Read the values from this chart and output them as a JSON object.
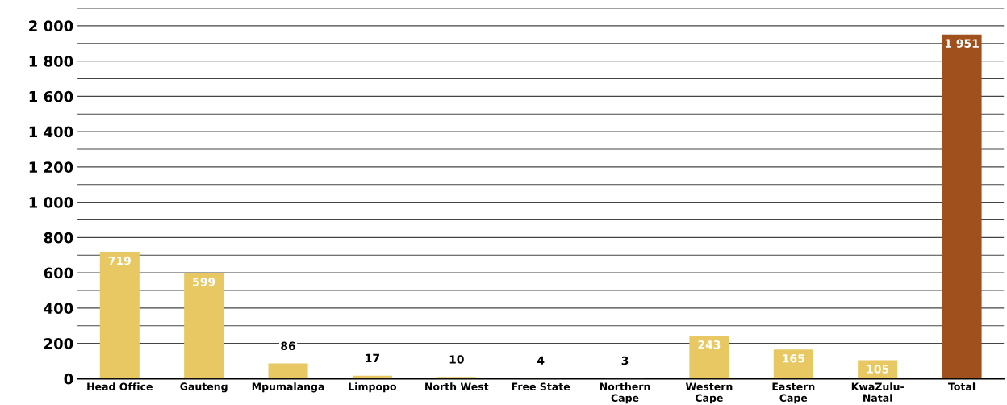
{
  "chart_data": {
    "type": "bar",
    "categories": [
      "Head Office",
      "Gauteng",
      "Mpumalanga",
      "Limpopo",
      "North West",
      "Free State",
      "Northern\nCape",
      "Western\nCape",
      "Eastern\nCape",
      "KwaZulu-\nNatal",
      "Total"
    ],
    "values": [
      719,
      599,
      86,
      17,
      10,
      4,
      3,
      243,
      165,
      105,
      1951
    ],
    "colors": [
      "#e8c862",
      "#e8c862",
      "#e8c862",
      "#e8c862",
      "#e8c862",
      "#e8c862",
      "#e8c862",
      "#e8c862",
      "#e8c862",
      "#e8c862",
      "#a0501c"
    ],
    "value_labels": [
      "719",
      "599",
      "86",
      "17",
      "10",
      "4",
      "3",
      "243",
      "165",
      "105",
      "1 951"
    ],
    "ylim": [
      0,
      2100
    ],
    "yticks": [
      {
        "value": 0,
        "label": "0"
      },
      {
        "value": 100,
        "label": null
      },
      {
        "value": 200,
        "label": "200"
      },
      {
        "value": 300,
        "label": null
      },
      {
        "value": 400,
        "label": "400"
      },
      {
        "value": 500,
        "label": null
      },
      {
        "value": 600,
        "label": "600"
      },
      {
        "value": 700,
        "label": null
      },
      {
        "value": 800,
        "label": "800"
      },
      {
        "value": 900,
        "label": null
      },
      {
        "value": 1000,
        "label": "1 000"
      },
      {
        "value": 1100,
        "label": null
      },
      {
        "value": 1200,
        "label": "1 200"
      },
      {
        "value": 1300,
        "label": null
      },
      {
        "value": 1400,
        "label": "1 400"
      },
      {
        "value": 1500,
        "label": null
      },
      {
        "value": 1600,
        "label": "1 600"
      },
      {
        "value": 1700,
        "label": null
      },
      {
        "value": 1800,
        "label": "1 800"
      },
      {
        "value": 1900,
        "label": null
      },
      {
        "value": 2000,
        "label": "2 000"
      },
      {
        "value": 2100,
        "label": null
      }
    ],
    "grid": "y"
  }
}
